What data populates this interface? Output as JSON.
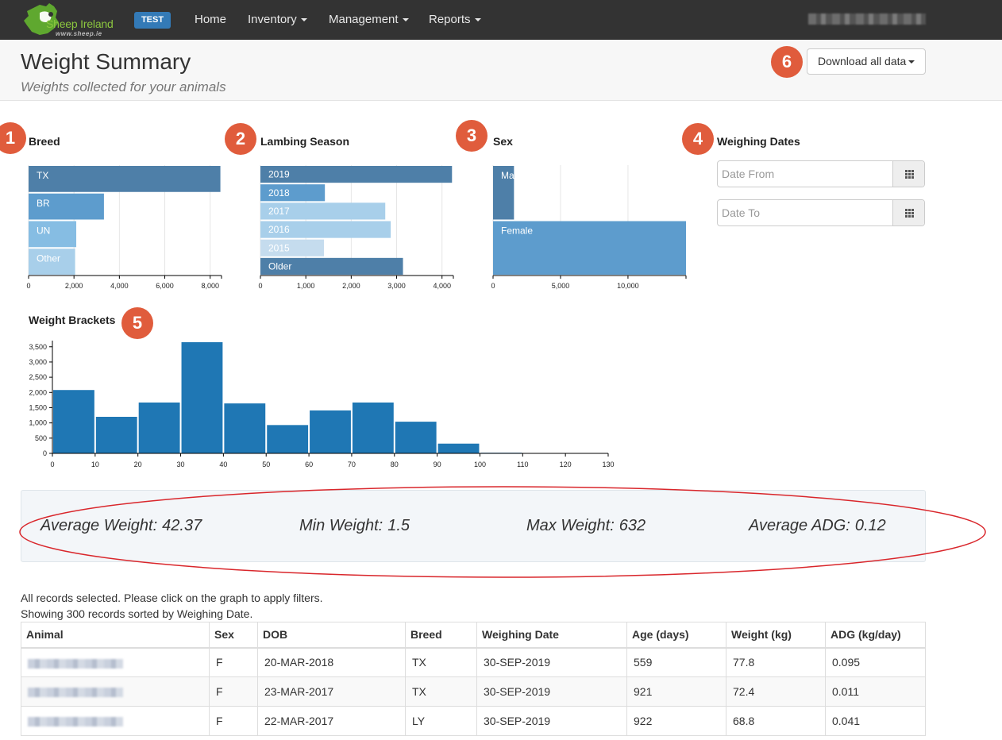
{
  "nav": {
    "logo_text": "Sheep Ireland",
    "logo_sub": "www.sheep.ie",
    "env_badge": "TEST",
    "items": [
      {
        "label": "Home",
        "dropdown": false
      },
      {
        "label": "Inventory",
        "dropdown": true
      },
      {
        "label": "Management",
        "dropdown": true
      },
      {
        "label": "Reports",
        "dropdown": true
      }
    ]
  },
  "header": {
    "title": "Weight Summary",
    "subtitle": "Weights collected for your animals",
    "download_label": "Download all data"
  },
  "badges": [
    "1",
    "2",
    "3",
    "4",
    "5",
    "6"
  ],
  "sections": {
    "breed": "Breed",
    "lambing": "Lambing Season",
    "sex": "Sex",
    "dates": "Weighing Dates",
    "brackets": "Weight Brackets"
  },
  "date_filters": {
    "from_placeholder": "Date From",
    "to_placeholder": "Date To"
  },
  "chart_data": [
    {
      "type": "bar",
      "orientation": "horizontal",
      "title": "Breed",
      "categories": [
        "TX",
        "BR",
        "UN",
        "Other"
      ],
      "values": [
        8450,
        3320,
        2100,
        2050
      ],
      "colors": [
        "#4e7fa8",
        "#5d9ccd",
        "#86bde3",
        "#a8cfea"
      ],
      "xlim": [
        0,
        8500
      ],
      "ticks": [
        0,
        2000,
        4000,
        6000,
        8000
      ]
    },
    {
      "type": "bar",
      "orientation": "horizontal",
      "title": "Lambing Season",
      "categories": [
        "2019",
        "2018",
        "2017",
        "2016",
        "2015",
        "Older"
      ],
      "values": [
        4220,
        1420,
        2750,
        2870,
        1400,
        3140
      ],
      "colors": [
        "#4e7fa8",
        "#5d9ccd",
        "#a8cfea",
        "#a8cfea",
        "#c5dcee",
        "#4e7fa8"
      ],
      "xlim": [
        0,
        4250
      ],
      "ticks": [
        0,
        1000,
        2000,
        3000,
        4000
      ]
    },
    {
      "type": "bar",
      "orientation": "horizontal",
      "title": "Sex",
      "categories": [
        "Male",
        "Female"
      ],
      "values": [
        1550,
        14300
      ],
      "colors": [
        "#4e7fa8",
        "#5d9ccd"
      ],
      "xlim": [
        0,
        14300
      ],
      "ticks": [
        0,
        5000,
        10000
      ]
    },
    {
      "type": "bar",
      "title": "Weight Brackets",
      "bin_edges": [
        0,
        10,
        20,
        30,
        40,
        50,
        60,
        70,
        80,
        90,
        100,
        110,
        120,
        130
      ],
      "values": [
        2080,
        1200,
        1670,
        3650,
        1640,
        930,
        1410,
        1670,
        1040,
        320,
        20,
        0,
        0
      ],
      "ylim": [
        0,
        3650
      ],
      "yticks": [
        0,
        500,
        1000,
        1500,
        2000,
        2500,
        3000,
        3500
      ],
      "color": "#1f77b4"
    }
  ],
  "stats": {
    "avg_label": "Average Weight:",
    "avg_value": "42.37",
    "min_label": "Min Weight:",
    "min_value": "1.5",
    "max_label": "Max Weight:",
    "max_value": "632",
    "adg_label": "Average ADG:",
    "adg_value": "0.12"
  },
  "info": {
    "line1": "All records selected. Please click on the graph to apply filters.",
    "line2": "Showing 300 records sorted by Weighing Date."
  },
  "table": {
    "headers": [
      "Animal",
      "Sex",
      "DOB",
      "Breed",
      "Weighing Date",
      "Age (days)",
      "Weight (kg)",
      "ADG (kg/day)"
    ],
    "rows": [
      {
        "sex": "F",
        "dob": "20-MAR-2018",
        "breed": "TX",
        "weighing_date": "30-SEP-2019",
        "age": "559",
        "weight": "77.8",
        "adg": "0.095"
      },
      {
        "sex": "F",
        "dob": "23-MAR-2017",
        "breed": "TX",
        "weighing_date": "30-SEP-2019",
        "age": "921",
        "weight": "72.4",
        "adg": "0.011"
      },
      {
        "sex": "F",
        "dob": "22-MAR-2017",
        "breed": "LY",
        "weighing_date": "30-SEP-2019",
        "age": "922",
        "weight": "68.8",
        "adg": "0.041"
      }
    ]
  }
}
